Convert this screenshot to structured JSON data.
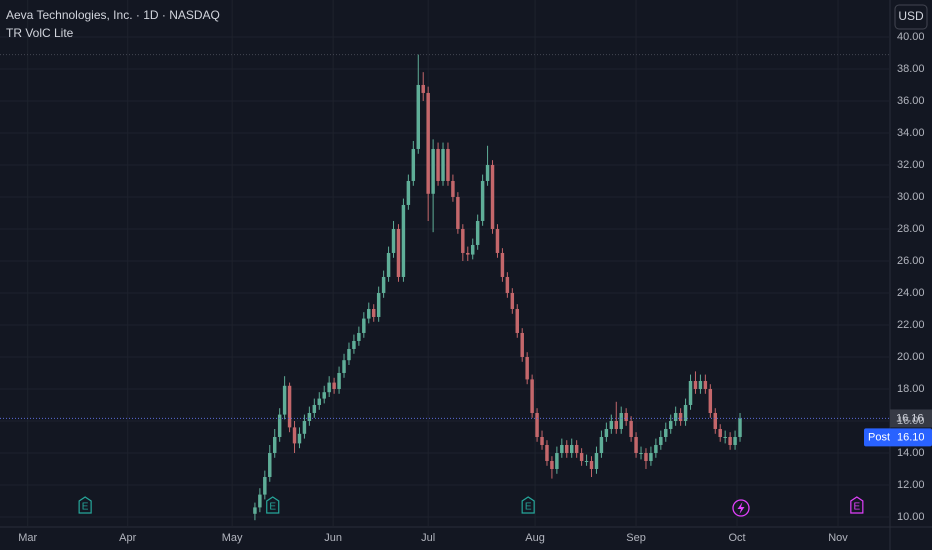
{
  "chart_data": {
    "type": "candlestick",
    "title": "Aeva Technologies, Inc. · 1D · NASDAQ",
    "indicator": "TR VolC Lite",
    "currency": "USD",
    "post_label": "Post",
    "post_price": "16.10",
    "up_color": "#5fae98",
    "down_color": "#c4676b",
    "grid": true,
    "x": [
      0,
      1,
      2,
      3,
      4,
      5,
      6,
      7,
      8,
      9,
      10,
      11,
      12,
      13,
      14,
      15,
      16,
      17,
      18,
      19,
      20,
      21,
      22,
      23,
      24,
      25,
      26,
      27,
      28,
      29,
      30,
      31,
      32,
      33,
      34,
      35,
      36,
      37,
      38,
      39,
      40,
      41,
      42,
      43,
      44,
      45,
      46,
      47,
      48,
      49,
      50,
      51,
      52,
      53,
      54,
      55,
      56,
      57,
      58,
      59,
      60,
      61,
      62,
      63,
      64,
      65,
      66,
      67,
      68,
      69,
      70,
      71,
      72,
      73,
      74,
      75,
      76,
      77,
      78,
      79,
      80,
      81,
      82,
      83,
      84,
      85,
      86,
      87,
      88,
      89,
      90,
      91,
      92,
      93,
      94,
      95,
      96,
      97,
      98
    ],
    "open": [
      10.2,
      10.6,
      11.4,
      12.5,
      14.0,
      15.0,
      16.4,
      18.2,
      15.6,
      14.6,
      15.2,
      16.0,
      16.5,
      17.0,
      17.4,
      17.8,
      18.4,
      18.0,
      19.0,
      19.8,
      20.5,
      21.0,
      21.5,
      22.4,
      23.0,
      22.5,
      24.0,
      25.0,
      26.5,
      28.0,
      25.0,
      29.5,
      31.0,
      33.0,
      37.0,
      36.5,
      30.2,
      33.0,
      31.0,
      33.0,
      31.0,
      30.0,
      28.0,
      26.5,
      26.4,
      27.0,
      28.5,
      31.0,
      32.0,
      28.0,
      26.5,
      25.0,
      24.0,
      23.0,
      21.5,
      20.0,
      18.6,
      16.5,
      15.0,
      14.5,
      13.5,
      13.0,
      14.0,
      14.5,
      14.0,
      14.5,
      14.0,
      13.5,
      13.5,
      13.0,
      14.0,
      15.0,
      15.5,
      16.0,
      15.5,
      16.5,
      16.0,
      15.0,
      14.0,
      14.0,
      13.5,
      14.0,
      14.5,
      15.0,
      15.5,
      16.0,
      16.5,
      16.0,
      17.0,
      18.5,
      18.0,
      18.5,
      18.0,
      16.5,
      15.5,
      15.0,
      15.0,
      14.5,
      15.0
    ],
    "high": [
      10.9,
      11.8,
      12.9,
      14.5,
      15.5,
      16.8,
      18.8,
      18.4,
      16.0,
      15.6,
      16.4,
      16.9,
      17.4,
      17.8,
      18.2,
      18.8,
      18.7,
      19.4,
      20.2,
      20.9,
      21.4,
      21.9,
      22.8,
      23.4,
      23.3,
      24.4,
      25.4,
      26.9,
      28.5,
      28.3,
      29.9,
      31.4,
      33.5,
      38.9,
      37.8,
      36.9,
      33.6,
      33.4,
      33.4,
      33.4,
      31.4,
      30.3,
      28.3,
      26.9,
      27.4,
      28.9,
      31.4,
      33.2,
      32.3,
      28.3,
      26.8,
      25.3,
      24.3,
      23.3,
      21.8,
      20.3,
      18.9,
      16.8,
      15.4,
      14.8,
      13.8,
      14.4,
      14.9,
      14.8,
      14.9,
      14.8,
      14.3,
      13.9,
      13.8,
      14.4,
      15.4,
      15.9,
      16.4,
      17.2,
      16.9,
      16.8,
      16.3,
      15.3,
      14.4,
      14.3,
      14.4,
      14.9,
      15.4,
      15.9,
      16.4,
      16.9,
      16.8,
      17.4,
      18.9,
      19.1,
      18.9,
      18.9,
      18.3,
      16.8,
      15.8,
      15.4,
      15.3,
      15.4,
      16.5
    ],
    "low": [
      9.8,
      10.3,
      11.1,
      12.2,
      13.7,
      14.7,
      16.1,
      15.3,
      14.0,
      14.3,
      14.9,
      15.7,
      16.2,
      16.7,
      17.1,
      17.5,
      17.7,
      17.7,
      18.7,
      19.5,
      20.2,
      20.7,
      21.2,
      22.1,
      22.2,
      22.2,
      23.7,
      24.7,
      26.2,
      24.7,
      24.7,
      29.2,
      30.7,
      32.7,
      36.0,
      28.5,
      27.8,
      30.7,
      30.7,
      30.7,
      29.7,
      27.7,
      26.0,
      26.0,
      26.1,
      26.7,
      28.2,
      30.7,
      27.7,
      26.2,
      24.7,
      23.7,
      22.7,
      21.2,
      19.7,
      18.3,
      16.2,
      14.7,
      14.2,
      13.2,
      12.4,
      12.7,
      13.7,
      13.7,
      13.7,
      13.7,
      13.2,
      13.2,
      12.5,
      12.7,
      13.7,
      14.7,
      15.2,
      15.2,
      15.2,
      15.7,
      14.7,
      13.7,
      13.6,
      13.0,
      13.2,
      13.7,
      14.2,
      14.7,
      15.2,
      15.7,
      15.7,
      15.7,
      16.7,
      17.7,
      17.7,
      17.7,
      16.2,
      15.2,
      14.7,
      14.6,
      14.2,
      14.2,
      14.7
    ],
    "close": [
      10.6,
      11.4,
      12.5,
      14.0,
      15.0,
      16.4,
      18.2,
      15.6,
      14.6,
      15.2,
      16.0,
      16.5,
      17.0,
      17.4,
      17.8,
      18.4,
      18.0,
      19.0,
      19.8,
      20.5,
      21.0,
      21.5,
      22.4,
      23.0,
      22.5,
      24.0,
      25.0,
      26.5,
      28.0,
      25.0,
      29.5,
      31.0,
      33.0,
      37.0,
      36.5,
      30.2,
      33.0,
      31.0,
      33.0,
      31.0,
      30.0,
      28.0,
      26.5,
      26.4,
      27.0,
      28.5,
      31.0,
      32.0,
      28.0,
      26.5,
      25.0,
      24.0,
      23.0,
      21.5,
      20.0,
      18.6,
      16.5,
      15.0,
      14.5,
      13.5,
      13.0,
      14.0,
      14.5,
      14.0,
      14.5,
      14.0,
      13.5,
      13.5,
      13.0,
      14.0,
      15.0,
      15.5,
      16.0,
      15.5,
      16.5,
      16.0,
      15.0,
      14.0,
      14.0,
      13.5,
      14.0,
      14.5,
      15.0,
      15.5,
      16.0,
      16.5,
      16.0,
      17.0,
      18.5,
      18.0,
      18.5,
      18.0,
      16.5,
      15.5,
      15.0,
      15.0,
      14.5,
      15.0,
      16.16
    ],
    "xlim": [
      -51.5,
      128.3
    ],
    "xticks": [
      {
        "value": -45.9,
        "label": "Mar"
      },
      {
        "value": -25.7,
        "label": "Apr"
      },
      {
        "value": -4.6,
        "label": "May"
      },
      {
        "value": 15.8,
        "label": "Jun"
      },
      {
        "value": 35.0,
        "label": "Jul"
      },
      {
        "value": 56.6,
        "label": "Aug"
      },
      {
        "value": 77.0,
        "label": "Sep"
      },
      {
        "value": 97.4,
        "label": "Oct"
      },
      {
        "value": 117.8,
        "label": "Nov"
      }
    ],
    "ylim": [
      9.375,
      42.31
    ],
    "yticks": [
      {
        "value": 10,
        "label": "10.00"
      },
      {
        "value": 12,
        "label": "12.00"
      },
      {
        "value": 14,
        "label": "14.00"
      },
      {
        "value": 16,
        "label": "16.00"
      },
      {
        "value": 18,
        "label": "18.00"
      },
      {
        "value": 20,
        "label": "20.00"
      },
      {
        "value": 22,
        "label": "22.00"
      },
      {
        "value": 24,
        "label": "24.00"
      },
      {
        "value": 26,
        "label": "26.00"
      },
      {
        "value": 28,
        "label": "28.00"
      },
      {
        "value": 30,
        "label": "30.00"
      },
      {
        "value": 32,
        "label": "32.00"
      },
      {
        "value": 34,
        "label": "34.00"
      },
      {
        "value": 36,
        "label": "36.00"
      },
      {
        "value": 38,
        "label": "38.00"
      },
      {
        "value": 40,
        "label": "40.00"
      }
    ],
    "events": [
      {
        "x": -34.3,
        "label": "E",
        "color": "#26a69a"
      },
      {
        "x": 3.6,
        "label": "E",
        "color": "#26a69a"
      },
      {
        "x": 55.2,
        "label": "E",
        "color": "#26a69a"
      },
      {
        "x": 121.6,
        "label": "E",
        "color": "#e040fb"
      }
    ]
  }
}
